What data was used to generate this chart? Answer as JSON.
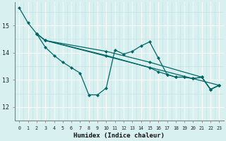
{
  "xlabel": "Humidex (Indice chaleur)",
  "bg_color": "#d9f0f0",
  "line_color": "#006666",
  "grid_major_color": "#ffffff",
  "grid_minor_color": "#c4e4e4",
  "xlim": [
    -0.5,
    23.5
  ],
  "ylim": [
    11.75,
    15.85
  ],
  "yticks": [
    12,
    13,
    14,
    15
  ],
  "xticks": [
    0,
    1,
    2,
    3,
    4,
    5,
    6,
    7,
    8,
    9,
    10,
    11,
    12,
    13,
    14,
    15,
    16,
    17,
    18,
    19,
    20,
    21,
    22,
    23
  ],
  "lines": [
    {
      "x": [
        0,
        1,
        2,
        3,
        23
      ],
      "y": [
        15.65,
        15.1,
        14.7,
        14.45,
        12.8
      ]
    },
    {
      "x": [
        2,
        3,
        10,
        15,
        21,
        22,
        23
      ],
      "y": [
        14.7,
        14.45,
        14.05,
        13.65,
        13.1,
        12.65,
        12.8
      ]
    },
    {
      "x": [
        2,
        3,
        10,
        15,
        16,
        17,
        18,
        19,
        20,
        21,
        22,
        23
      ],
      "y": [
        14.7,
        14.45,
        13.9,
        13.45,
        13.3,
        13.2,
        13.1,
        13.1,
        13.05,
        13.1,
        12.65,
        12.8
      ]
    },
    {
      "x": [
        2,
        3,
        4,
        5,
        6,
        7,
        8,
        9,
        10,
        11,
        12,
        13,
        14,
        15,
        16,
        17,
        18,
        19,
        20,
        21,
        22,
        23
      ],
      "y": [
        14.7,
        14.2,
        13.9,
        13.65,
        13.45,
        13.25,
        12.45,
        12.45,
        12.7,
        14.1,
        13.95,
        14.05,
        14.25,
        14.4,
        13.8,
        13.2,
        13.1,
        13.1,
        13.05,
        13.1,
        12.65,
        12.8
      ]
    }
  ]
}
